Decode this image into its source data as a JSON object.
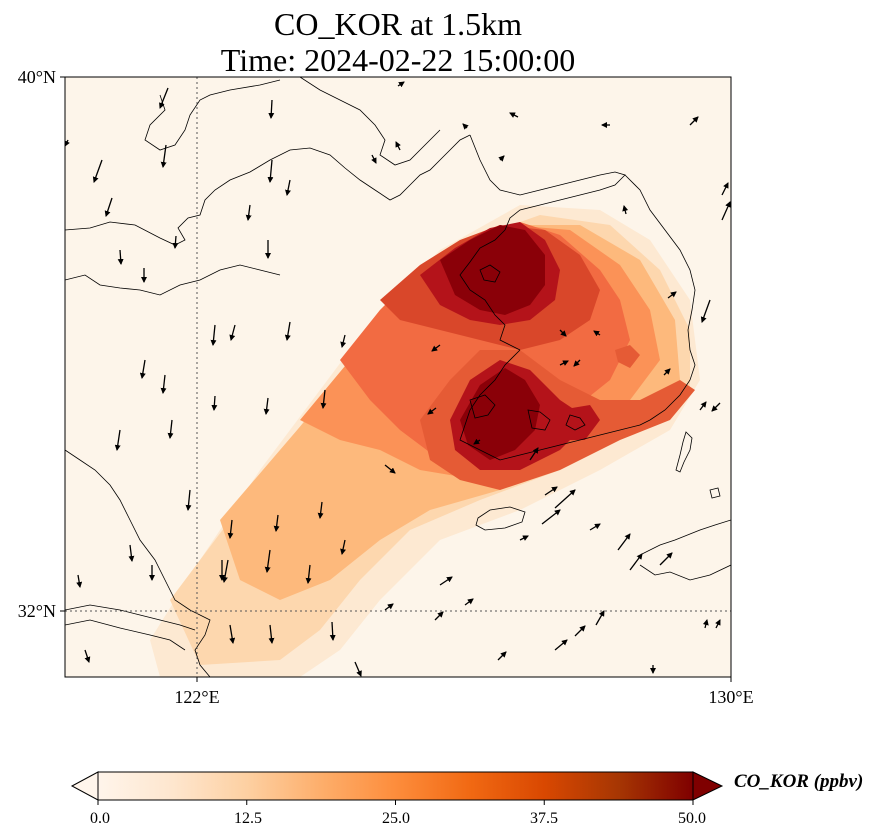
{
  "title": {
    "line1": "CO_KOR at 1.5km",
    "line2": "Time: 2024-02-22 15:00:00"
  },
  "axes": {
    "x_ticks": [
      "122°E",
      "130°E"
    ],
    "y_ticks": [
      "40°N",
      "32°N"
    ],
    "lon_range": [
      120,
      130
    ],
    "lat_range": [
      31,
      40
    ],
    "gridlines": "dotted at 122°E and 32°N"
  },
  "colorbar": {
    "label": "CO_KOR (ppbv)",
    "ticks": [
      "0.0",
      "12.5",
      "25.0",
      "37.5",
      "50.0"
    ],
    "min": 0,
    "max": 50,
    "extend": "both",
    "colormap": [
      "#fff5eb",
      "#fee6ce",
      "#fdd0a2",
      "#fdae6b",
      "#fd8d3c",
      "#f16913",
      "#d94801",
      "#a63603",
      "#7f0000"
    ]
  },
  "map_features": {
    "coastline_color": "#000000",
    "background_color": "#fdf5ea",
    "wind_vector_color": "#000000"
  }
}
